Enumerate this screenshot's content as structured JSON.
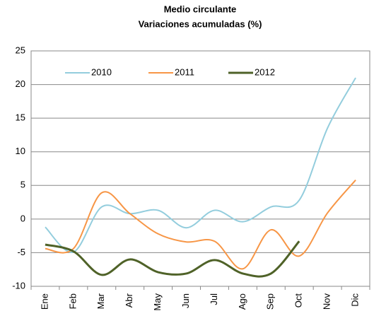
{
  "chart_data": {
    "type": "line",
    "title": "Medio circulante",
    "subtitle": "Variaciones acumuladas  (%)",
    "categories": [
      "Ene",
      "Feb",
      "Mar",
      "Abr",
      "May",
      "Jun",
      "Jul",
      "Ago",
      "Sep",
      "Oct",
      "Nov",
      "Dic"
    ],
    "series": [
      {
        "name": "2010",
        "color": "#93cddd",
        "values": [
          -1.2,
          -4.9,
          1.8,
          0.8,
          1.3,
          -1.3,
          1.3,
          -0.4,
          1.8,
          2.8,
          13.5,
          21
        ]
      },
      {
        "name": "2011",
        "color": "#f79646",
        "values": [
          -4.4,
          -4.4,
          3.9,
          0.8,
          -2.2,
          -3.4,
          -3.3,
          -7.4,
          -1.6,
          -5.5,
          0.9,
          5.8
        ]
      },
      {
        "name": "2012",
        "color": "#4f6228",
        "values": [
          -3.8,
          -4.8,
          -8.3,
          -6.0,
          -7.9,
          -8.1,
          -6.1,
          -8.1,
          -8.1,
          -3.3,
          null,
          null
        ]
      }
    ],
    "ylim": [
      -10,
      25
    ],
    "yticks": [
      -10,
      -5,
      0,
      5,
      10,
      15,
      20,
      25
    ],
    "grid": true,
    "legend": "top"
  }
}
